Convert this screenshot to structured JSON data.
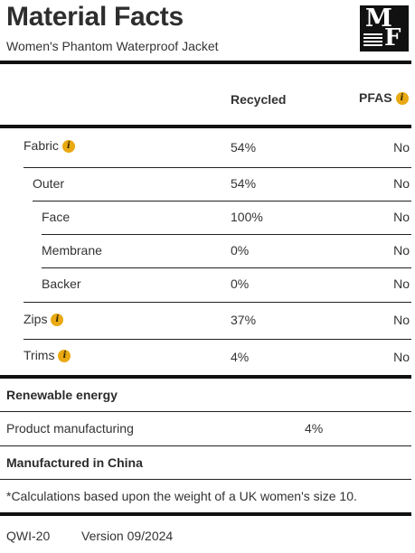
{
  "header": {
    "title": "Material Facts",
    "subtitle": "Women's Phantom Waterproof Jacket",
    "logo_text": "MF"
  },
  "table": {
    "col_recycled": "Recycled",
    "col_pfas": "PFAS",
    "rows": [
      {
        "label": "Fabric",
        "recycled": "54%",
        "pfas": "No",
        "info": true
      },
      {
        "label": "Outer",
        "recycled": "54%",
        "pfas": "No",
        "info": false
      },
      {
        "label": "Face",
        "recycled": "100%",
        "pfas": "No",
        "info": false
      },
      {
        "label": "Membrane",
        "recycled": "0%",
        "pfas": "No",
        "info": false
      },
      {
        "label": "Backer",
        "recycled": "0%",
        "pfas": "No",
        "info": false
      },
      {
        "label": "Zips",
        "recycled": "37%",
        "pfas": "No",
        "info": true
      },
      {
        "label": "Trims",
        "recycled": "4%",
        "pfas": "No",
        "info": true
      }
    ]
  },
  "renewable": {
    "heading": "Renewable energy",
    "label": "Product manufacturing",
    "value": "4%"
  },
  "origin": "Manufactured in China",
  "footnote": "*Calculations based upon the weight of a UK women's size 10.",
  "footer": {
    "code": "QWI-20",
    "version": "Version 09/2024"
  },
  "colors": {
    "info_badge": "#e9a913",
    "rule": "#111111"
  },
  "icons": {
    "info": "info-icon"
  }
}
